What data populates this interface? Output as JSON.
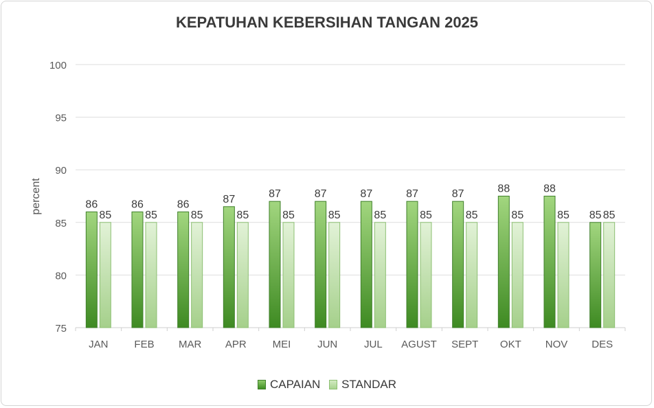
{
  "chart_data": {
    "type": "bar",
    "title": "KEPATUHAN KEBERSIHAN TANGAN 2025",
    "ylabel": "percent",
    "xlabel": "",
    "ylim": [
      75,
      100
    ],
    "yticks": [
      75,
      80,
      85,
      90,
      95,
      100
    ],
    "grid": true,
    "legend_position": "bottom",
    "categories": [
      "JAN",
      "FEB",
      "MAR",
      "APR",
      "MEI",
      "JUN",
      "JUL",
      "AGUST",
      "SEPT",
      "OKT",
      "NOV",
      "DES"
    ],
    "series": [
      {
        "name": "CAPAIAN",
        "values": [
          86,
          86,
          86,
          86.5,
          87,
          87,
          87,
          87,
          87,
          87.5,
          87.5,
          85
        ],
        "labels": [
          "86",
          "86",
          "86",
          "87",
          "87",
          "87",
          "87",
          "87",
          "87",
          "88",
          "88",
          "85"
        ],
        "color": "#5aa83a"
      },
      {
        "name": "STANDAR",
        "values": [
          85,
          85,
          85,
          85,
          85,
          85,
          85,
          85,
          85,
          85,
          85,
          85
        ],
        "labels": [
          "85",
          "85",
          "85",
          "85",
          "85",
          "85",
          "85",
          "85",
          "85",
          "85",
          "85",
          "85"
        ],
        "color": "#b9dfa3"
      }
    ]
  }
}
